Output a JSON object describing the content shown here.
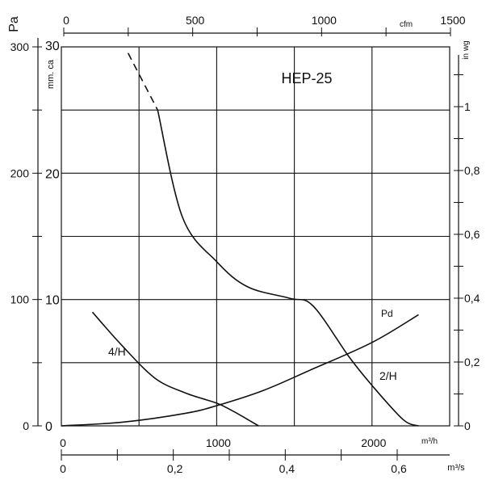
{
  "chart_data": {
    "type": "line",
    "title": "HEP-25",
    "grid": true,
    "x_axis": {
      "label": "m³/h",
      "range": [
        0,
        2500
      ],
      "ticks": [
        0,
        1000,
        2000
      ],
      "tick_labels": [
        "0",
        "1000",
        "2000"
      ]
    },
    "x_axis_bottom_secondary": {
      "label": "m³/s",
      "ticks": [
        0,
        0.2,
        0.4,
        0.6
      ],
      "tick_labels": [
        "0",
        "0,2",
        "0,4",
        "0,6"
      ]
    },
    "x_axis_top": {
      "label": "cfm",
      "ticks": [
        0,
        500,
        1000,
        1500
      ],
      "tick_labels": [
        "0",
        "500",
        "1000",
        "1500"
      ]
    },
    "y_axis": {
      "label": "Pa",
      "range": [
        0,
        300
      ],
      "ticks": [
        0,
        100,
        200,
        300
      ],
      "tick_labels": [
        "0",
        "100",
        "200",
        "300"
      ]
    },
    "y_axis_secondary": {
      "label": "mm. ca",
      "ticks": [
        0,
        10,
        20,
        30
      ],
      "tick_labels": [
        "0",
        "10",
        "20",
        "30"
      ]
    },
    "y_axis_right": {
      "label": "in wg",
      "ticks": [
        0,
        0.2,
        0.4,
        0.6,
        0.8,
        1
      ],
      "tick_labels": [
        "0",
        "0,2",
        "0,4",
        "0,6",
        "0,8",
        "1"
      ]
    },
    "series": [
      {
        "name": "2/H",
        "points": [
          [
            430,
            295
          ],
          [
            620,
            250
          ],
          [
            780,
            165
          ],
          [
            1000,
            130
          ],
          [
            1200,
            110
          ],
          [
            1470,
            101
          ],
          [
            1620,
            95
          ],
          [
            1850,
            55
          ],
          [
            2000,
            32
          ],
          [
            2200,
            5
          ],
          [
            2300,
            0
          ]
        ],
        "dashed_until_x": 620
      },
      {
        "name": "4/H",
        "points": [
          [
            0,
            113
          ],
          [
            200,
            90
          ],
          [
            380,
            65
          ],
          [
            600,
            38
          ],
          [
            800,
            26
          ],
          [
            1000,
            18
          ],
          [
            1100,
            12
          ],
          [
            1200,
            5
          ],
          [
            1270,
            0
          ]
        ],
        "dashed_until_x": 150
      },
      {
        "name": "Pd",
        "points": [
          [
            0,
            0
          ],
          [
            400,
            3
          ],
          [
            800,
            10
          ],
          [
            1000,
            16
          ],
          [
            1300,
            28
          ],
          [
            1600,
            44
          ],
          [
            2000,
            66
          ],
          [
            2300,
            88
          ]
        ]
      }
    ]
  }
}
